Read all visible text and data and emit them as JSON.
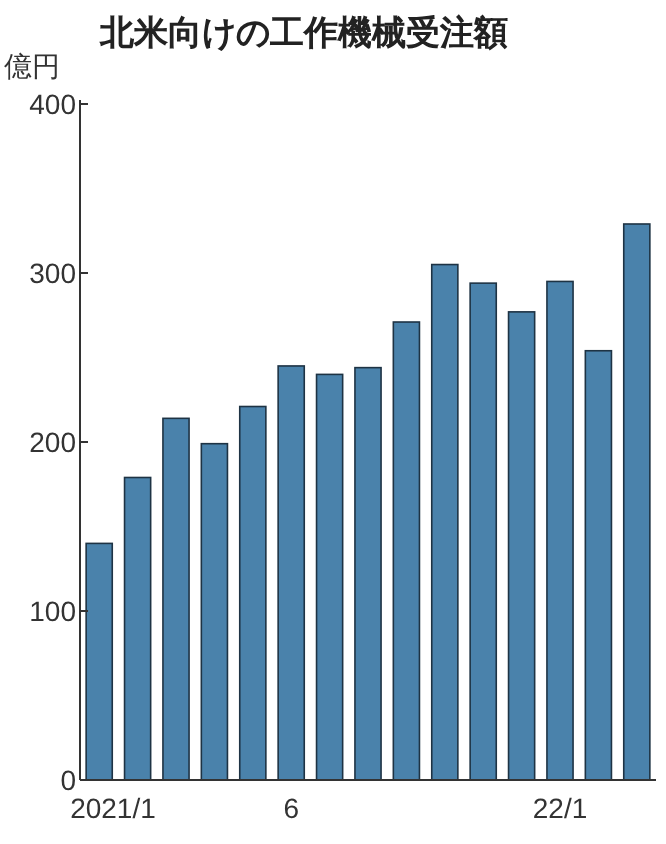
{
  "chart_data": {
    "type": "bar",
    "title": "北米向けの工作機械受注額",
    "ylabel": "億円",
    "categories": [
      "2021/1",
      null,
      null,
      null,
      null,
      "6",
      null,
      null,
      null,
      null,
      null,
      null,
      "22/1",
      null,
      null
    ],
    "values": [
      140,
      179,
      214,
      199,
      221,
      245,
      240,
      244,
      271,
      305,
      294,
      277,
      295,
      254,
      329
    ],
    "color": "#4a82ab",
    "ylim": [
      0,
      400
    ],
    "yticks": [
      0,
      100,
      200,
      300,
      400
    ],
    "grid": false
  }
}
